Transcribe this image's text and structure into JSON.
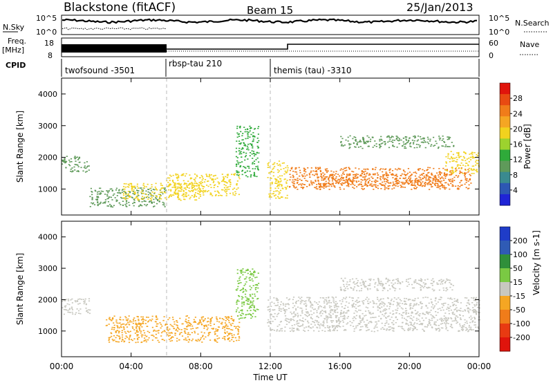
{
  "header": {
    "station": "Blackstone (fitACF)",
    "beam": "Beam 15",
    "date": "25/Jan/2013"
  },
  "params_panel": {
    "nsky_label": "N.Sky",
    "nsearch_label": "N.Search",
    "freq_label": "Freq.",
    "freq_unit": "[MHz]",
    "nave_label": "Nave",
    "cpid_label": "CPID",
    "noise_ticks_left": [
      "10^5",
      "10^0"
    ],
    "noise_ticks_right": [
      "10^5",
      "10^0"
    ],
    "freq_ticks": [
      "18",
      "8"
    ],
    "nave_ticks": [
      "60",
      "0"
    ],
    "cpid_segments": [
      {
        "label": "twofsound -3501",
        "start_hour": 0,
        "end_hour": 6
      },
      {
        "label": "rbsp-tau 210",
        "start_hour": 6,
        "end_hour": 12
      },
      {
        "label": "themis (tau) -3310",
        "start_hour": 12,
        "end_hour": 24
      }
    ]
  },
  "chart_data": [
    {
      "type": "heatmap",
      "panel": "power",
      "ylabel": "Slant Range [km]",
      "xlim": [
        0,
        24
      ],
      "ylim": [
        180,
        4500
      ],
      "yticks": [
        1000,
        2000,
        3000,
        4000
      ],
      "colorbar": {
        "label": "Power [dB]",
        "range": [
          0,
          32
        ],
        "ticks": [
          "4",
          "8",
          "12",
          "16",
          "20",
          "24",
          "28"
        ],
        "colors": [
          "#1f24d6",
          "#2d57b3",
          "#3a8a8f",
          "#5f9a5a",
          "#2faa3a",
          "#9dd22e",
          "#f2d21e",
          "#f5a623",
          "#f07c1a",
          "#e84a12",
          "#e0140c"
        ]
      },
      "echo_bands": [
        {
          "x0": 0.0,
          "x1": 1.6,
          "r0": 1550,
          "r1": 2050,
          "level": 11
        },
        {
          "x0": 1.6,
          "x1": 6.0,
          "r0": 450,
          "r1": 1050,
          "level": 10
        },
        {
          "x0": 3.5,
          "x1": 8.0,
          "r0": 650,
          "r1": 1200,
          "level": 20
        },
        {
          "x0": 6.0,
          "x1": 10.2,
          "r0": 800,
          "r1": 1500,
          "level": 18
        },
        {
          "x0": 10.0,
          "x1": 11.3,
          "r0": 1400,
          "r1": 3000,
          "level": 14
        },
        {
          "x0": 11.8,
          "x1": 13.0,
          "r0": 700,
          "r1": 1900,
          "level": 18
        },
        {
          "x0": 13.0,
          "x1": 23.5,
          "r0": 1000,
          "r1": 1700,
          "level": 24
        },
        {
          "x0": 15.0,
          "x1": 22.5,
          "r0": 1100,
          "r1": 1500,
          "level": 27
        },
        {
          "x0": 16.0,
          "x1": 22.5,
          "r0": 2300,
          "r1": 2700,
          "level": 8
        },
        {
          "x0": 22.0,
          "x1": 24.0,
          "r0": 1500,
          "r1": 2200,
          "level": 18
        }
      ]
    },
    {
      "type": "heatmap",
      "panel": "velocity",
      "ylabel": "Slant Range [km]",
      "xlabel": "Time UT",
      "xlim": [
        0,
        24
      ],
      "ylim": [
        180,
        4500
      ],
      "xticks": [
        "00:00",
        "04:00",
        "08:00",
        "12:00",
        "16:00",
        "20:00",
        "00:00"
      ],
      "yticks": [
        1000,
        2000,
        3000,
        4000
      ],
      "colorbar": {
        "label": "Velocity [m s-1]",
        "ticks": [
          "200",
          "100",
          "50",
          "15",
          "-15",
          "-50",
          "-100",
          "-200"
        ],
        "colors": [
          "#1f3cc8",
          "#2f5bb5",
          "#2f8f3a",
          "#7ac943",
          "#c8c8c0",
          "#f5a623",
          "#f07c1a",
          "#e83a12",
          "#e0140c"
        ]
      },
      "echo_bands": [
        {
          "x0": 0.0,
          "x1": 1.6,
          "r0": 1550,
          "r1": 2050,
          "velocity": 0
        },
        {
          "x0": 2.5,
          "x1": 10.2,
          "r0": 650,
          "r1": 1500,
          "velocity": -40
        },
        {
          "x0": 10.0,
          "x1": 11.3,
          "r0": 1400,
          "r1": 3000,
          "velocity": 30
        },
        {
          "x0": 11.8,
          "x1": 24.0,
          "r0": 1000,
          "r1": 2100,
          "velocity": 0
        },
        {
          "x0": 16.0,
          "x1": 22.5,
          "r0": 2300,
          "r1": 2700,
          "velocity": 0
        }
      ]
    }
  ]
}
